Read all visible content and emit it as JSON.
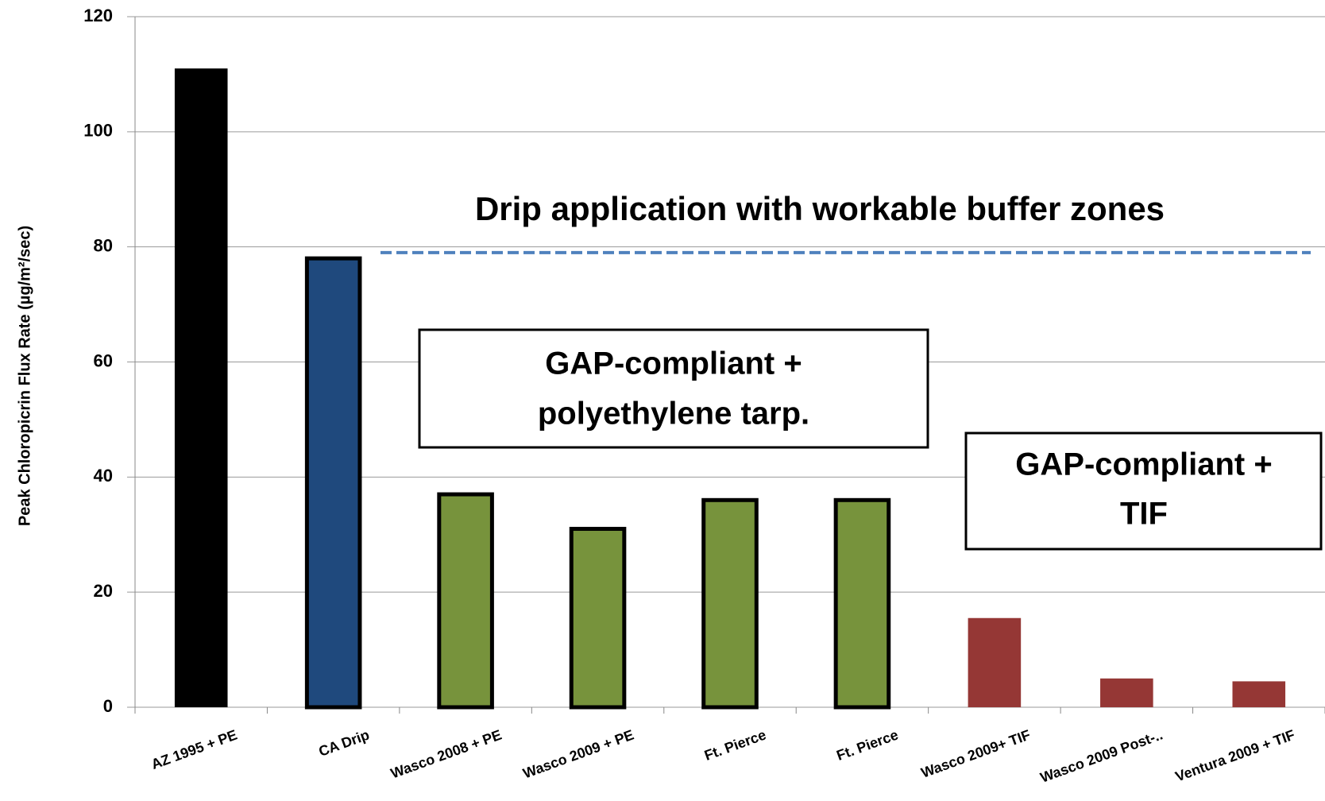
{
  "chart_data": {
    "type": "bar",
    "y_label": "Peak Chloropicrin Flux Rate (µg/m²/sec)",
    "categories": [
      "AZ 1995 + PE",
      "CA Drip",
      "Wasco 2008 + PE",
      "Wasco 2009 + PE",
      "Ft. Pierce",
      "Ft. Pierce",
      "Wasco 2009+ TIF",
      "Wasco 2009 Post-..",
      "Ventura 2009 + TIF"
    ],
    "values": [
      111,
      78,
      37,
      31,
      36,
      36,
      15.5,
      5,
      4.5
    ],
    "colors": [
      "#000000",
      "#1f497d",
      "#77933c",
      "#77933c",
      "#77933c",
      "#77933c",
      "#953735",
      "#953735",
      "#953735"
    ],
    "ylim": [
      0,
      120
    ],
    "yticks": [
      0,
      20,
      40,
      60,
      80,
      100,
      120
    ],
    "grid": true,
    "reference_line": {
      "value": 79,
      "color": "#4f81bd",
      "label": "Drip application with workable buffer zones"
    },
    "annotations": [
      {
        "lines": [
          "GAP-compliant +",
          "polyethylene tarp."
        ]
      },
      {
        "lines": [
          "GAP-compliant +",
          "TIF"
        ]
      }
    ]
  }
}
